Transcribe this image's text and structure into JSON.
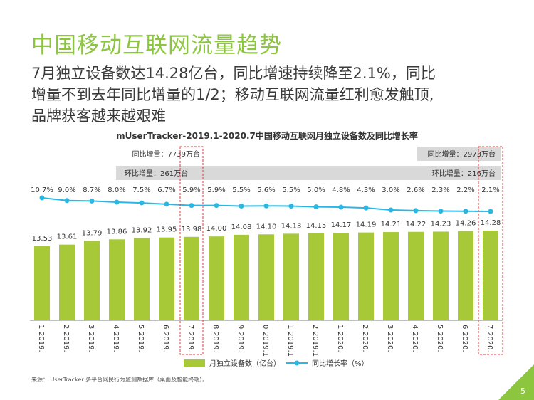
{
  "page": {
    "title": "中国移动互联网流量趋势",
    "subtitle_lines": [
      "7月独立设备数达14.28亿台，同比增速持续降至2.1%，同比",
      "增量不到去年同比增量的1/2；移动互联网流量红利愈发触顶,",
      "品牌获客越来越艰难"
    ],
    "footer_note": "来源： UserTracker 多平台网民行为监测数据库（桌面及智能终端）。",
    "page_number": "5"
  },
  "colors": {
    "title_green": "#8cc63f",
    "bar": "#a7c938",
    "line": "#2ab7e4",
    "box_gray": "#d9d9d9",
    "dash_red": "#e23b3b"
  },
  "chart_data": {
    "type": "bar",
    "title": "mUserTracker-2019.1-2020.7中国移动互联网月独立设备数及同比增长率",
    "categories": [
      "2019.1",
      "2019.2",
      "2019.3",
      "2019.4",
      "2019.5",
      "2019.6",
      "2019.7",
      "2019.8",
      "2019.9",
      "2019.10",
      "2019.11",
      "2019.12",
      "2020.1",
      "2020.2",
      "2020.3",
      "2020.4",
      "2020.5",
      "2020.6",
      "2020.7"
    ],
    "series": [
      {
        "name": "月独立设备数（亿台）",
        "type": "bar",
        "values": [
          13.53,
          13.61,
          13.79,
          13.86,
          13.92,
          13.95,
          13.98,
          14.0,
          14.08,
          14.1,
          14.13,
          14.15,
          14.17,
          14.19,
          14.21,
          14.22,
          14.23,
          14.26,
          14.28
        ],
        "labels": [
          "13.53",
          "13.61",
          "13.79",
          "13.86",
          "13.92",
          "13.95",
          "13.98",
          "14.00",
          "14.08",
          "14.10",
          "14.13",
          "14.15",
          "14.17",
          "14.19",
          "14.21",
          "14.22",
          "14.23",
          "14.26",
          "14.28"
        ]
      },
      {
        "name": "同比增长率（%）",
        "type": "line",
        "values": [
          10.7,
          9.0,
          8.7,
          8.0,
          7.5,
          6.7,
          5.9,
          5.9,
          5.5,
          5.6,
          5.5,
          5.0,
          4.8,
          4.3,
          3.0,
          2.6,
          2.3,
          2.2,
          2.1
        ],
        "labels": [
          "10.7%",
          "9.0%",
          "8.7%",
          "8.0%",
          "7.5%",
          "6.7%",
          "5.9%",
          "5.9%",
          "5.5%",
          "5.6%",
          "5.5%",
          "5.0%",
          "4.8%",
          "4.3%",
          "3.0%",
          "2.6%",
          "2.3%",
          "2.2%",
          "2.1%"
        ]
      }
    ],
    "x_tick_labels": [
      [
        "1",
        "2019."
      ],
      [
        "2",
        "2019."
      ],
      [
        "3",
        "2019."
      ],
      [
        "4",
        "2019."
      ],
      [
        "5",
        "2019."
      ],
      [
        "6",
        "2019."
      ],
      [
        "7",
        "2019."
      ],
      [
        "8",
        "2019."
      ],
      [
        "9",
        "2019."
      ],
      [
        "0",
        "2019.1"
      ],
      [
        "1",
        "2019.1"
      ],
      [
        "2",
        "2019.1"
      ],
      [
        "1",
        "2020."
      ],
      [
        "2",
        "2020."
      ],
      [
        "3",
        "2020."
      ],
      [
        "4",
        "2020."
      ],
      [
        "5",
        "2020."
      ],
      [
        "6",
        "2020."
      ],
      [
        "7",
        "2020."
      ]
    ],
    "annotations": [
      {
        "text": "同比增量：7739万台",
        "month": "2019.7"
      },
      {
        "text": "环比增量：261万台",
        "month": "2019.7"
      },
      {
        "text": "同比增量：2973万台",
        "month": "2020.7"
      },
      {
        "text": "环比增量：216万台",
        "month": "2020.7"
      }
    ],
    "highlighted": [
      "2019.7",
      "2020.7"
    ],
    "legend_position": "bottom",
    "grid": false
  }
}
